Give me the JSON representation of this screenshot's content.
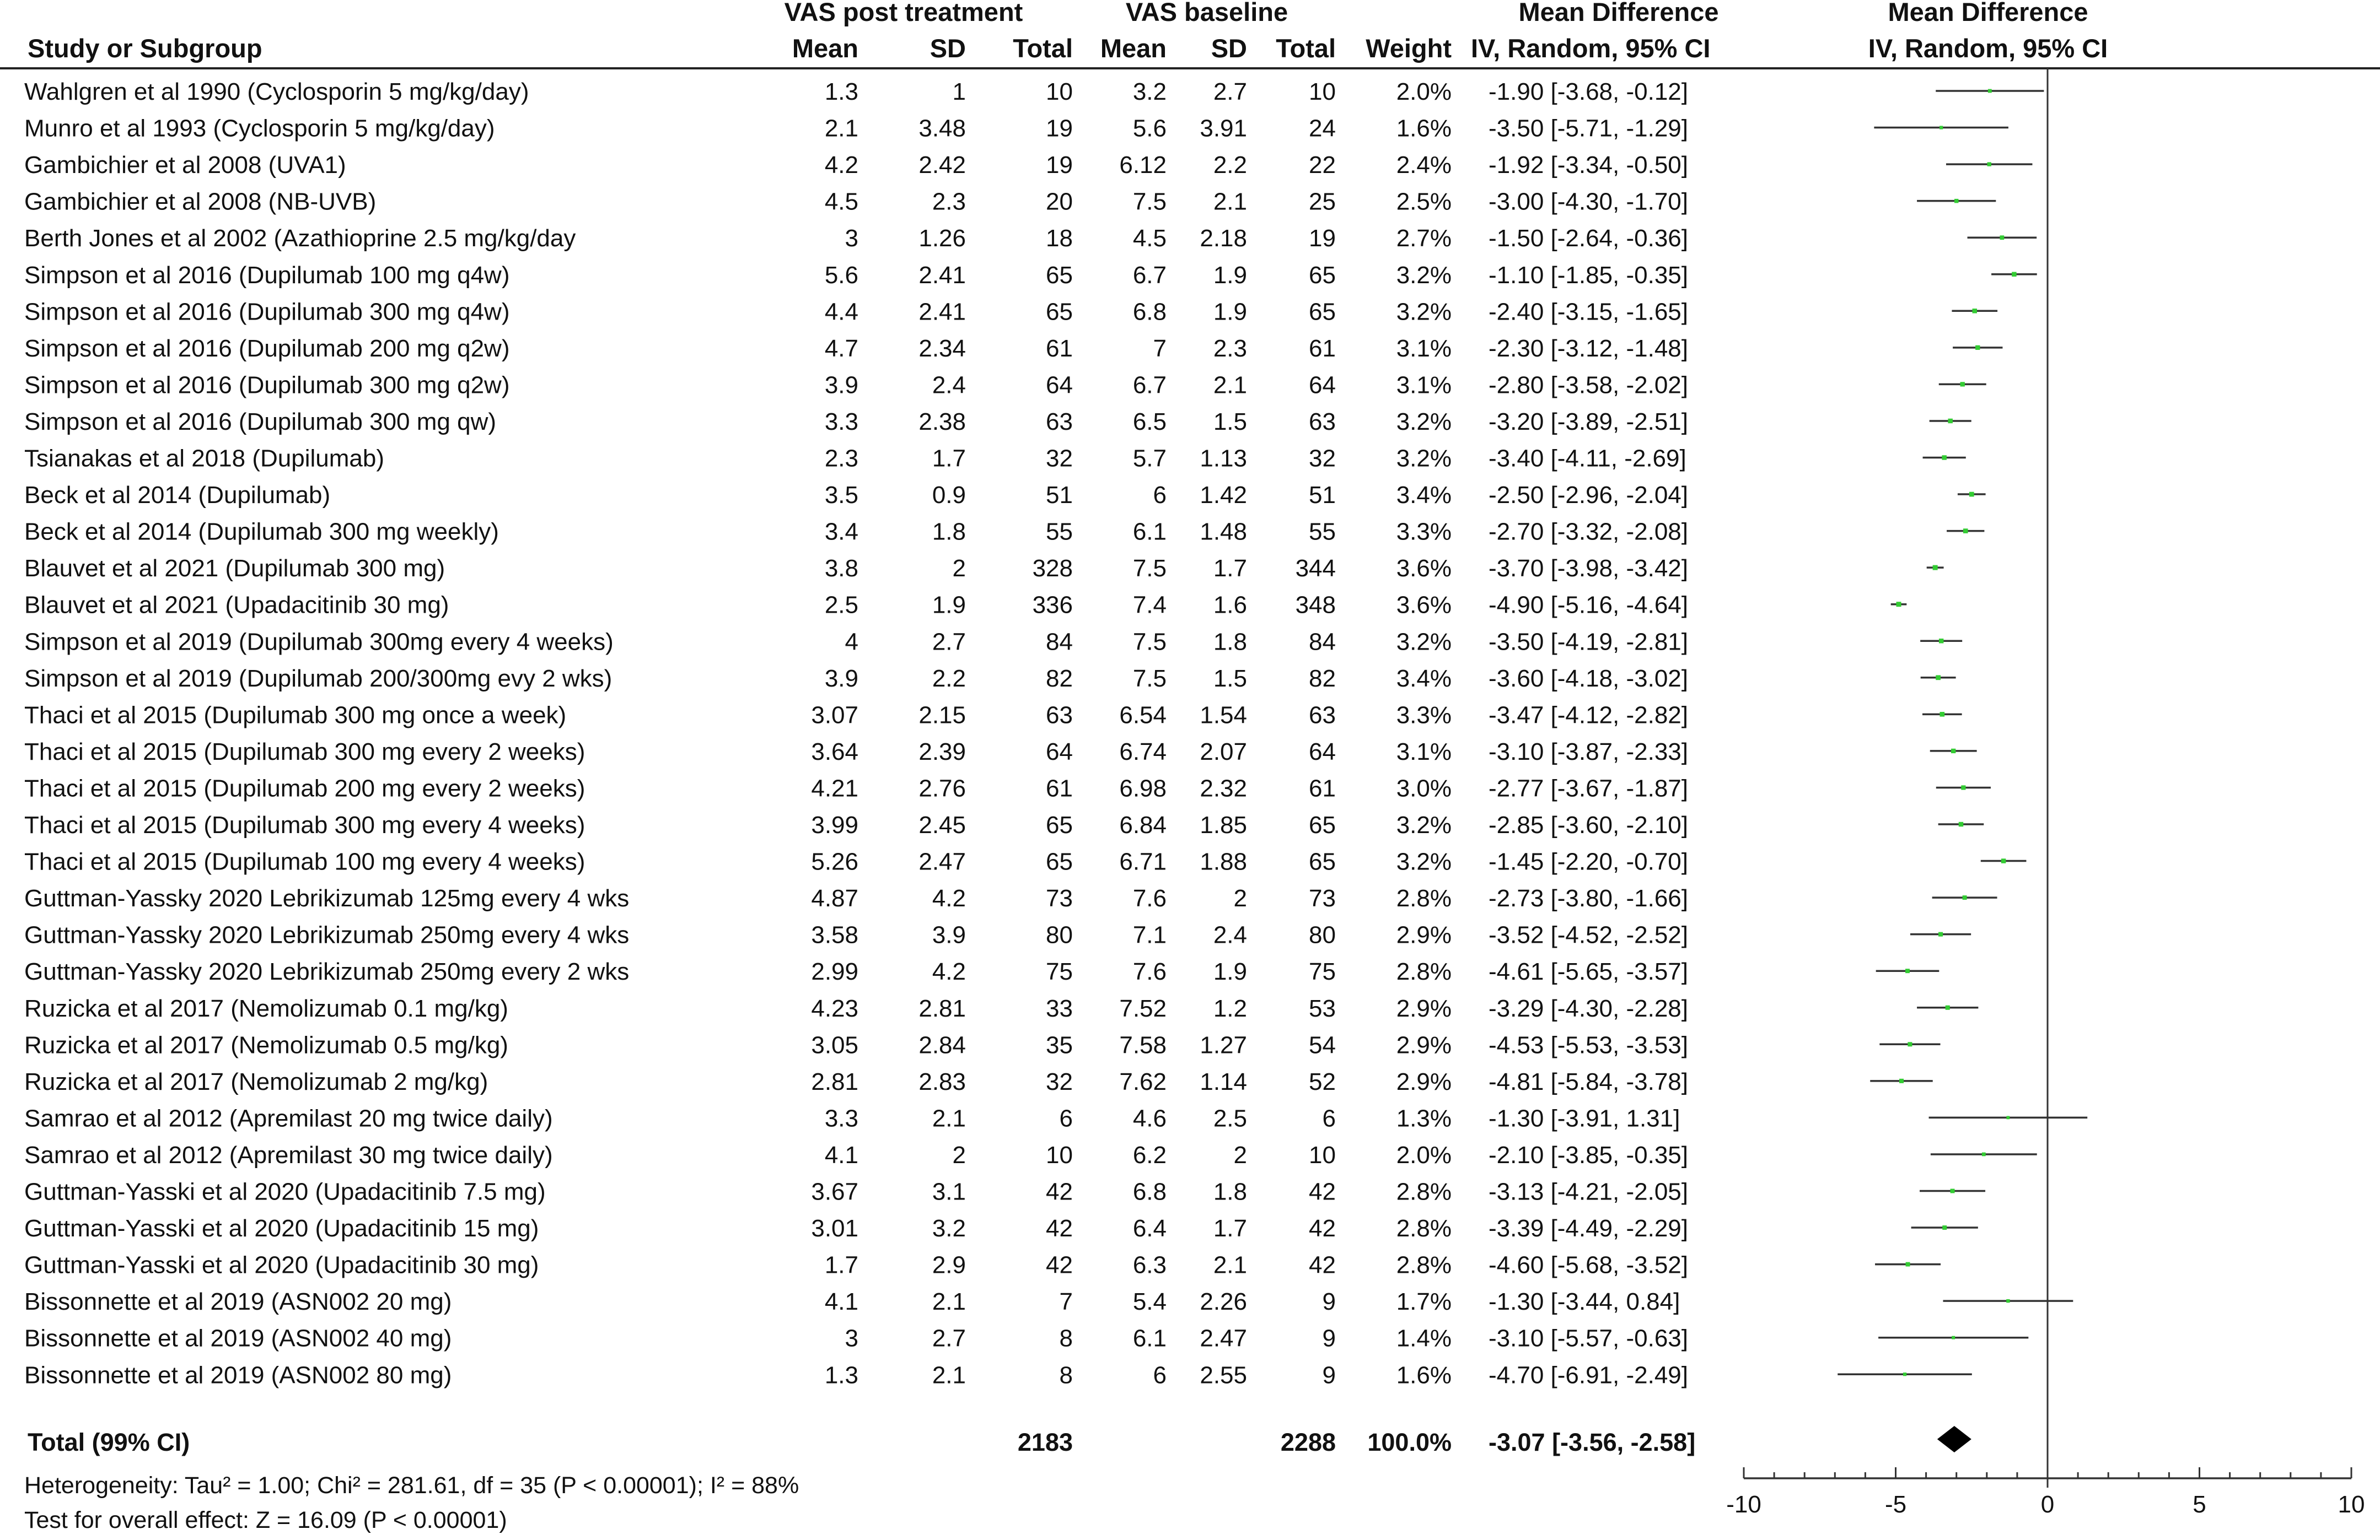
{
  "headers": {
    "study": "Study or Subgroup",
    "group1": "VAS post treatment",
    "group2": "VAS baseline",
    "mean1": "Mean",
    "sd1": "SD",
    "total1": "Total",
    "mean2": "Mean",
    "sd2": "SD",
    "total2": "Total",
    "weight": "Weight",
    "md_title": "Mean Difference",
    "md_sub": "IV, Random, 95% CI",
    "plot_title": "Mean Difference",
    "plot_sub": "IV, Random, 95% CI"
  },
  "studies": [
    {
      "name": "Wahlgren et al 1990 (Cyclosporin 5 mg/kg/day)",
      "m1": "1.3",
      "sd1": "1",
      "n1": "10",
      "m2": "3.2",
      "sd2": "2.7",
      "n2": "10",
      "weight": "2.0%",
      "ci": "-1.90 [-3.68, -0.12]"
    },
    {
      "name": "Munro et al 1993 (Cyclosporin 5 mg/kg/day)",
      "m1": "2.1",
      "sd1": "3.48",
      "n1": "19",
      "m2": "5.6",
      "sd2": "3.91",
      "n2": "24",
      "weight": "1.6%",
      "ci": "-3.50 [-5.71, -1.29]"
    },
    {
      "name": "Gambichier et al 2008 (UVA1)",
      "m1": "4.2",
      "sd1": "2.42",
      "n1": "19",
      "m2": "6.12",
      "sd2": "2.2",
      "n2": "22",
      "weight": "2.4%",
      "ci": "-1.92 [-3.34, -0.50]"
    },
    {
      "name": "Gambichier et al 2008 (NB-UVB)",
      "m1": "4.5",
      "sd1": "2.3",
      "n1": "20",
      "m2": "7.5",
      "sd2": "2.1",
      "n2": "25",
      "weight": "2.5%",
      "ci": "-3.00 [-4.30, -1.70]"
    },
    {
      "name": "Berth Jones et al 2002 (Azathioprine 2.5 mg/kg/day",
      "m1": "3",
      "sd1": "1.26",
      "n1": "18",
      "m2": "4.5",
      "sd2": "2.18",
      "n2": "19",
      "weight": "2.7%",
      "ci": "-1.50 [-2.64, -0.36]"
    },
    {
      "name": "Simpson et al 2016 (Dupilumab 100 mg q4w)",
      "m1": "5.6",
      "sd1": "2.41",
      "n1": "65",
      "m2": "6.7",
      "sd2": "1.9",
      "n2": "65",
      "weight": "3.2%",
      "ci": "-1.10 [-1.85, -0.35]"
    },
    {
      "name": "Simpson et al 2016 (Dupilumab 300 mg q4w)",
      "m1": "4.4",
      "sd1": "2.41",
      "n1": "65",
      "m2": "6.8",
      "sd2": "1.9",
      "n2": "65",
      "weight": "3.2%",
      "ci": "-2.40 [-3.15, -1.65]"
    },
    {
      "name": "Simpson et al 2016 (Dupilumab 200 mg q2w)",
      "m1": "4.7",
      "sd1": "2.34",
      "n1": "61",
      "m2": "7",
      "sd2": "2.3",
      "n2": "61",
      "weight": "3.1%",
      "ci": "-2.30 [-3.12, -1.48]"
    },
    {
      "name": "Simpson et al 2016 (Dupilumab 300 mg q2w)",
      "m1": "3.9",
      "sd1": "2.4",
      "n1": "64",
      "m2": "6.7",
      "sd2": "2.1",
      "n2": "64",
      "weight": "3.1%",
      "ci": "-2.80 [-3.58, -2.02]"
    },
    {
      "name": "Simpson et al 2016 (Dupilumab 300 mg qw)",
      "m1": "3.3",
      "sd1": "2.38",
      "n1": "63",
      "m2": "6.5",
      "sd2": "1.5",
      "n2": "63",
      "weight": "3.2%",
      "ci": "-3.20 [-3.89, -2.51]"
    },
    {
      "name": "Tsianakas et al 2018 (Dupilumab)",
      "m1": "2.3",
      "sd1": "1.7",
      "n1": "32",
      "m2": "5.7",
      "sd2": "1.13",
      "n2": "32",
      "weight": "3.2%",
      "ci": "-3.40 [-4.11, -2.69]"
    },
    {
      "name": "Beck et al 2014 (Dupilumab)",
      "m1": "3.5",
      "sd1": "0.9",
      "n1": "51",
      "m2": "6",
      "sd2": "1.42",
      "n2": "51",
      "weight": "3.4%",
      "ci": "-2.50 [-2.96, -2.04]"
    },
    {
      "name": "Beck et al 2014 (Dupilumab 300 mg weekly)",
      "m1": "3.4",
      "sd1": "1.8",
      "n1": "55",
      "m2": "6.1",
      "sd2": "1.48",
      "n2": "55",
      "weight": "3.3%",
      "ci": "-2.70 [-3.32, -2.08]"
    },
    {
      "name": "Blauvet et al 2021 (Dupilumab 300 mg)",
      "m1": "3.8",
      "sd1": "2",
      "n1": "328",
      "m2": "7.5",
      "sd2": "1.7",
      "n2": "344",
      "weight": "3.6%",
      "ci": "-3.70 [-3.98, -3.42]"
    },
    {
      "name": "Blauvet et al 2021 (Upadacitinib 30 mg)",
      "m1": "2.5",
      "sd1": "1.9",
      "n1": "336",
      "m2": "7.4",
      "sd2": "1.6",
      "n2": "348",
      "weight": "3.6%",
      "ci": "-4.90 [-5.16, -4.64]"
    },
    {
      "name": "Simpson et al 2019 (Dupilumab 300mg every 4 weeks)",
      "m1": "4",
      "sd1": "2.7",
      "n1": "84",
      "m2": "7.5",
      "sd2": "1.8",
      "n2": "84",
      "weight": "3.2%",
      "ci": "-3.50 [-4.19, -2.81]"
    },
    {
      "name": "Simpson et al 2019 (Dupilumab 200/300mg evy 2 wks)",
      "m1": "3.9",
      "sd1": "2.2",
      "n1": "82",
      "m2": "7.5",
      "sd2": "1.5",
      "n2": "82",
      "weight": "3.4%",
      "ci": "-3.60 [-4.18, -3.02]"
    },
    {
      "name": "Thaci et al 2015 (Dupilumab 300 mg once a week)",
      "m1": "3.07",
      "sd1": "2.15",
      "n1": "63",
      "m2": "6.54",
      "sd2": "1.54",
      "n2": "63",
      "weight": "3.3%",
      "ci": "-3.47 [-4.12, -2.82]"
    },
    {
      "name": "Thaci et al 2015 (Dupilumab 300 mg every 2 weeks)",
      "m1": "3.64",
      "sd1": "2.39",
      "n1": "64",
      "m2": "6.74",
      "sd2": "2.07",
      "n2": "64",
      "weight": "3.1%",
      "ci": "-3.10 [-3.87, -2.33]"
    },
    {
      "name": "Thaci et al 2015 (Dupilumab 200 mg every 2 weeks)",
      "m1": "4.21",
      "sd1": "2.76",
      "n1": "61",
      "m2": "6.98",
      "sd2": "2.32",
      "n2": "61",
      "weight": "3.0%",
      "ci": "-2.77 [-3.67, -1.87]"
    },
    {
      "name": "Thaci et al 2015 (Dupilumab 300 mg every 4 weeks)",
      "m1": "3.99",
      "sd1": "2.45",
      "n1": "65",
      "m2": "6.84",
      "sd2": "1.85",
      "n2": "65",
      "weight": "3.2%",
      "ci": "-2.85 [-3.60, -2.10]"
    },
    {
      "name": "Thaci et al 2015 (Dupilumab 100 mg every 4 weeks)",
      "m1": "5.26",
      "sd1": "2.47",
      "n1": "65",
      "m2": "6.71",
      "sd2": "1.88",
      "n2": "65",
      "weight": "3.2%",
      "ci": "-1.45 [-2.20, -0.70]"
    },
    {
      "name": "Guttman-Yassky 2020 Lebrikizumab 125mg every 4 wks",
      "m1": "4.87",
      "sd1": "4.2",
      "n1": "73",
      "m2": "7.6",
      "sd2": "2",
      "n2": "73",
      "weight": "2.8%",
      "ci": "-2.73 [-3.80, -1.66]"
    },
    {
      "name": "Guttman-Yassky 2020 Lebrikizumab 250mg every 4 wks",
      "m1": "3.58",
      "sd1": "3.9",
      "n1": "80",
      "m2": "7.1",
      "sd2": "2.4",
      "n2": "80",
      "weight": "2.9%",
      "ci": "-3.52 [-4.52, -2.52]"
    },
    {
      "name": "Guttman-Yassky 2020 Lebrikizumab 250mg every 2 wks",
      "m1": "2.99",
      "sd1": "4.2",
      "n1": "75",
      "m2": "7.6",
      "sd2": "1.9",
      "n2": "75",
      "weight": "2.8%",
      "ci": "-4.61 [-5.65, -3.57]"
    },
    {
      "name": "Ruzicka et al 2017 (Nemolizumab 0.1 mg/kg)",
      "m1": "4.23",
      "sd1": "2.81",
      "n1": "33",
      "m2": "7.52",
      "sd2": "1.2",
      "n2": "53",
      "weight": "2.9%",
      "ci": "-3.29 [-4.30, -2.28]"
    },
    {
      "name": "Ruzicka et al 2017 (Nemolizumab 0.5 mg/kg)",
      "m1": "3.05",
      "sd1": "2.84",
      "n1": "35",
      "m2": "7.58",
      "sd2": "1.27",
      "n2": "54",
      "weight": "2.9%",
      "ci": "-4.53 [-5.53, -3.53]"
    },
    {
      "name": "Ruzicka et al 2017 (Nemolizumab 2 mg/kg)",
      "m1": "2.81",
      "sd1": "2.83",
      "n1": "32",
      "m2": "7.62",
      "sd2": "1.14",
      "n2": "52",
      "weight": "2.9%",
      "ci": "-4.81 [-5.84, -3.78]"
    },
    {
      "name": "Samrao et al 2012 (Apremilast 20 mg twice daily)",
      "m1": "3.3",
      "sd1": "2.1",
      "n1": "6",
      "m2": "4.6",
      "sd2": "2.5",
      "n2": "6",
      "weight": "1.3%",
      "ci": "-1.30 [-3.91, 1.31]"
    },
    {
      "name": "Samrao et al 2012 (Apremilast 30 mg twice daily)",
      "m1": "4.1",
      "sd1": "2",
      "n1": "10",
      "m2": "6.2",
      "sd2": "2",
      "n2": "10",
      "weight": "2.0%",
      "ci": "-2.10 [-3.85, -0.35]"
    },
    {
      "name": "Guttman-Yasski et al 2020 (Upadacitinib 7.5 mg)",
      "m1": "3.67",
      "sd1": "3.1",
      "n1": "42",
      "m2": "6.8",
      "sd2": "1.8",
      "n2": "42",
      "weight": "2.8%",
      "ci": "-3.13 [-4.21, -2.05]"
    },
    {
      "name": "Guttman-Yasski et al 2020 (Upadacitinib 15 mg)",
      "m1": "3.01",
      "sd1": "3.2",
      "n1": "42",
      "m2": "6.4",
      "sd2": "1.7",
      "n2": "42",
      "weight": "2.8%",
      "ci": "-3.39 [-4.49, -2.29]"
    },
    {
      "name": "Guttman-Yasski et al 2020 (Upadacitinib 30 mg)",
      "m1": "1.7",
      "sd1": "2.9",
      "n1": "42",
      "m2": "6.3",
      "sd2": "2.1",
      "n2": "42",
      "weight": "2.8%",
      "ci": "-4.60 [-5.68, -3.52]"
    },
    {
      "name": "Bissonnette et al 2019 (ASN002 20 mg)",
      "m1": "4.1",
      "sd1": "2.1",
      "n1": "7",
      "m2": "5.4",
      "sd2": "2.26",
      "n2": "9",
      "weight": "1.7%",
      "ci": "-1.30 [-3.44, 0.84]"
    },
    {
      "name": "Bissonnette et al 2019 (ASN002 40 mg)",
      "m1": "3",
      "sd1": "2.7",
      "n1": "8",
      "m2": "6.1",
      "sd2": "2.47",
      "n2": "9",
      "weight": "1.4%",
      "ci": "-3.10 [-5.57, -0.63]"
    },
    {
      "name": "Bissonnette et al 2019 (ASN002 80 mg)",
      "m1": "1.3",
      "sd1": "2.1",
      "n1": "8",
      "m2": "6",
      "sd2": "2.55",
      "n2": "9",
      "weight": "1.6%",
      "ci": "-4.70 [-6.91, -2.49]"
    }
  ],
  "total": {
    "label": "Total (99% CI)",
    "n1": "2183",
    "n2": "2288",
    "weight": "100.0%",
    "ci": "-3.07 [-3.56, -2.58]"
  },
  "footer": {
    "heterogeneity": "Heterogeneity: Tau² = 1.00; Chi² = 281.61, df = 35 (P < 0.00001); I² = 88%",
    "overall": "Test for overall effect: Z = 16.09 (P < 0.00001)"
  },
  "colors": {
    "point": "#33cc33",
    "line": "#333333",
    "diamond": "#000000"
  },
  "chart_data": {
    "type": "forest",
    "xlim": [
      -10,
      10
    ],
    "xticks": [
      -10,
      -5,
      0,
      5,
      10
    ],
    "xtick_labels": [
      "-10",
      "-5",
      "0",
      "5",
      "10"
    ],
    "reference_line": 0,
    "points": [
      {
        "md": -1.9,
        "lo": -3.68,
        "hi": -0.12,
        "w": 2.0
      },
      {
        "md": -3.5,
        "lo": -5.71,
        "hi": -1.29,
        "w": 1.6
      },
      {
        "md": -1.92,
        "lo": -3.34,
        "hi": -0.5,
        "w": 2.4
      },
      {
        "md": -3.0,
        "lo": -4.3,
        "hi": -1.7,
        "w": 2.5
      },
      {
        "md": -1.5,
        "lo": -2.64,
        "hi": -0.36,
        "w": 2.7
      },
      {
        "md": -1.1,
        "lo": -1.85,
        "hi": -0.35,
        "w": 3.2
      },
      {
        "md": -2.4,
        "lo": -3.15,
        "hi": -1.65,
        "w": 3.2
      },
      {
        "md": -2.3,
        "lo": -3.12,
        "hi": -1.48,
        "w": 3.1
      },
      {
        "md": -2.8,
        "lo": -3.58,
        "hi": -2.02,
        "w": 3.1
      },
      {
        "md": -3.2,
        "lo": -3.89,
        "hi": -2.51,
        "w": 3.2
      },
      {
        "md": -3.4,
        "lo": -4.11,
        "hi": -2.69,
        "w": 3.2
      },
      {
        "md": -2.5,
        "lo": -2.96,
        "hi": -2.04,
        "w": 3.4
      },
      {
        "md": -2.7,
        "lo": -3.32,
        "hi": -2.08,
        "w": 3.3
      },
      {
        "md": -3.7,
        "lo": -3.98,
        "hi": -3.42,
        "w": 3.6
      },
      {
        "md": -4.9,
        "lo": -5.16,
        "hi": -4.64,
        "w": 3.6
      },
      {
        "md": -3.5,
        "lo": -4.19,
        "hi": -2.81,
        "w": 3.2
      },
      {
        "md": -3.6,
        "lo": -4.18,
        "hi": -3.02,
        "w": 3.4
      },
      {
        "md": -3.47,
        "lo": -4.12,
        "hi": -2.82,
        "w": 3.3
      },
      {
        "md": -3.1,
        "lo": -3.87,
        "hi": -2.33,
        "w": 3.1
      },
      {
        "md": -2.77,
        "lo": -3.67,
        "hi": -1.87,
        "w": 3.0
      },
      {
        "md": -2.85,
        "lo": -3.6,
        "hi": -2.1,
        "w": 3.2
      },
      {
        "md": -1.45,
        "lo": -2.2,
        "hi": -0.7,
        "w": 3.2
      },
      {
        "md": -2.73,
        "lo": -3.8,
        "hi": -1.66,
        "w": 2.8
      },
      {
        "md": -3.52,
        "lo": -4.52,
        "hi": -2.52,
        "w": 2.9
      },
      {
        "md": -4.61,
        "lo": -5.65,
        "hi": -3.57,
        "w": 2.8
      },
      {
        "md": -3.29,
        "lo": -4.3,
        "hi": -2.28,
        "w": 2.9
      },
      {
        "md": -4.53,
        "lo": -5.53,
        "hi": -3.53,
        "w": 2.9
      },
      {
        "md": -4.81,
        "lo": -5.84,
        "hi": -3.78,
        "w": 2.9
      },
      {
        "md": -1.3,
        "lo": -3.91,
        "hi": 1.31,
        "w": 1.3
      },
      {
        "md": -2.1,
        "lo": -3.85,
        "hi": -0.35,
        "w": 2.0
      },
      {
        "md": -3.13,
        "lo": -4.21,
        "hi": -2.05,
        "w": 2.8
      },
      {
        "md": -3.39,
        "lo": -4.49,
        "hi": -2.29,
        "w": 2.8
      },
      {
        "md": -4.6,
        "lo": -5.68,
        "hi": -3.52,
        "w": 2.8
      },
      {
        "md": -1.3,
        "lo": -3.44,
        "hi": 0.84,
        "w": 1.7
      },
      {
        "md": -3.1,
        "lo": -5.57,
        "hi": -0.63,
        "w": 1.4
      },
      {
        "md": -4.7,
        "lo": -6.91,
        "hi": -2.49,
        "w": 1.6
      }
    ],
    "overall": {
      "md": -3.07,
      "lo": -3.56,
      "hi": -2.58
    }
  }
}
